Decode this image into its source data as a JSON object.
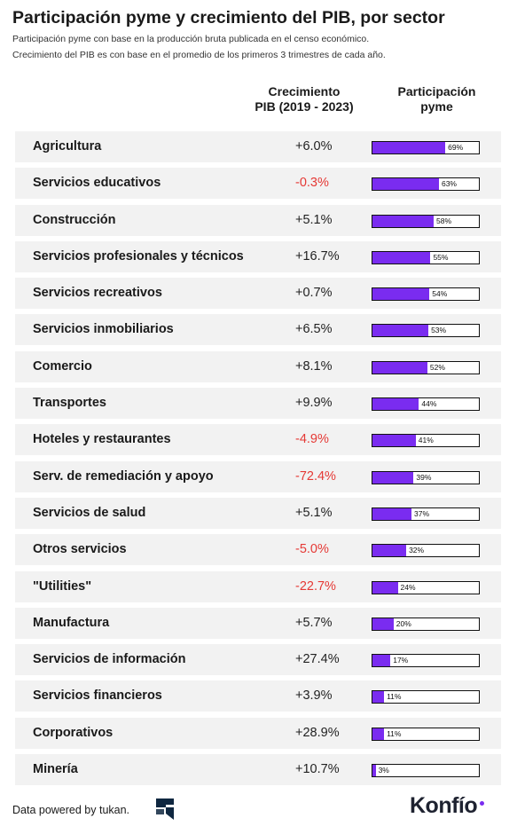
{
  "chart_data": {
    "type": "table",
    "title": "Participación pyme y crecimiento del PIB, por sector",
    "subtitle_lines": [
      "Participación pyme con base en la producción bruta publicada en el censo económico.",
      "Crecimiento del PIB es con base en el promedio de los primeros 3 trimestres de cada año."
    ],
    "columns": {
      "growth_line1": "Crecimiento",
      "growth_line2": "PIB (2019 - 2023)",
      "share_line1": "Participación",
      "share_line2": "pyme"
    },
    "rows": [
      {
        "sector": "Agricultura",
        "gdp_growth": "+6.0%",
        "growth_value": 6.0,
        "sme_share_label": "69%",
        "sme_share": 69
      },
      {
        "sector": "Servicios educativos",
        "gdp_growth": "-0.3%",
        "growth_value": -0.3,
        "sme_share_label": "63%",
        "sme_share": 63
      },
      {
        "sector": "Construcción",
        "gdp_growth": "+5.1%",
        "growth_value": 5.1,
        "sme_share_label": "58%",
        "sme_share": 58
      },
      {
        "sector": "Servicios profesionales y técnicos",
        "gdp_growth": "+16.7%",
        "growth_value": 16.7,
        "sme_share_label": "55%",
        "sme_share": 55
      },
      {
        "sector": "Servicios recreativos",
        "gdp_growth": "+0.7%",
        "growth_value": 0.7,
        "sme_share_label": "54%",
        "sme_share": 54
      },
      {
        "sector": "Servicios inmobiliarios",
        "gdp_growth": "+6.5%",
        "growth_value": 6.5,
        "sme_share_label": "53%",
        "sme_share": 53
      },
      {
        "sector": "Comercio",
        "gdp_growth": "+8.1%",
        "growth_value": 8.1,
        "sme_share_label": "52%",
        "sme_share": 52
      },
      {
        "sector": "Transportes",
        "gdp_growth": "+9.9%",
        "growth_value": 9.9,
        "sme_share_label": "44%",
        "sme_share": 44
      },
      {
        "sector": "Hoteles y restaurantes",
        "gdp_growth": "-4.9%",
        "growth_value": -4.9,
        "sme_share_label": "41%",
        "sme_share": 41
      },
      {
        "sector": "Serv. de remediación y apoyo",
        "gdp_growth": "-72.4%",
        "growth_value": -72.4,
        "sme_share_label": "39%",
        "sme_share": 39
      },
      {
        "sector": "Servicios de salud",
        "gdp_growth": "+5.1%",
        "growth_value": 5.1,
        "sme_share_label": "37%",
        "sme_share": 37
      },
      {
        "sector": "Otros servicios",
        "gdp_growth": "-5.0%",
        "growth_value": -5.0,
        "sme_share_label": "32%",
        "sme_share": 32
      },
      {
        "sector": "\"Utilities\"",
        "gdp_growth": "-22.7%",
        "growth_value": -22.7,
        "sme_share_label": "24%",
        "sme_share": 24
      },
      {
        "sector": "Manufactura",
        "gdp_growth": "+5.7%",
        "growth_value": 5.7,
        "sme_share_label": "20%",
        "sme_share": 20
      },
      {
        "sector": "Servicios de información",
        "gdp_growth": "+27.4%",
        "growth_value": 27.4,
        "sme_share_label": "17%",
        "sme_share": 17
      },
      {
        "sector": "Servicios financieros",
        "gdp_growth": "+3.9%",
        "growth_value": 3.9,
        "sme_share_label": "11%",
        "sme_share": 11
      },
      {
        "sector": "Corporativos",
        "gdp_growth": "+28.9%",
        "growth_value": 28.9,
        "sme_share_label": "11%",
        "sme_share": 11
      },
      {
        "sector": "Minería",
        "gdp_growth": "+10.7%",
        "growth_value": 10.7,
        "sme_share_label": "3%",
        "sme_share": 3
      }
    ],
    "share_scale_max": 100,
    "colors": {
      "bar_fill": "#7a2cf0",
      "negative_growth": "#e53935",
      "positive_growth": "#222222",
      "row_background": "#f2f2f2"
    }
  },
  "footer": {
    "credit": "Data powered by tukan.",
    "credit_icon": "tukan-logo-icon",
    "brand": "Konfío"
  }
}
